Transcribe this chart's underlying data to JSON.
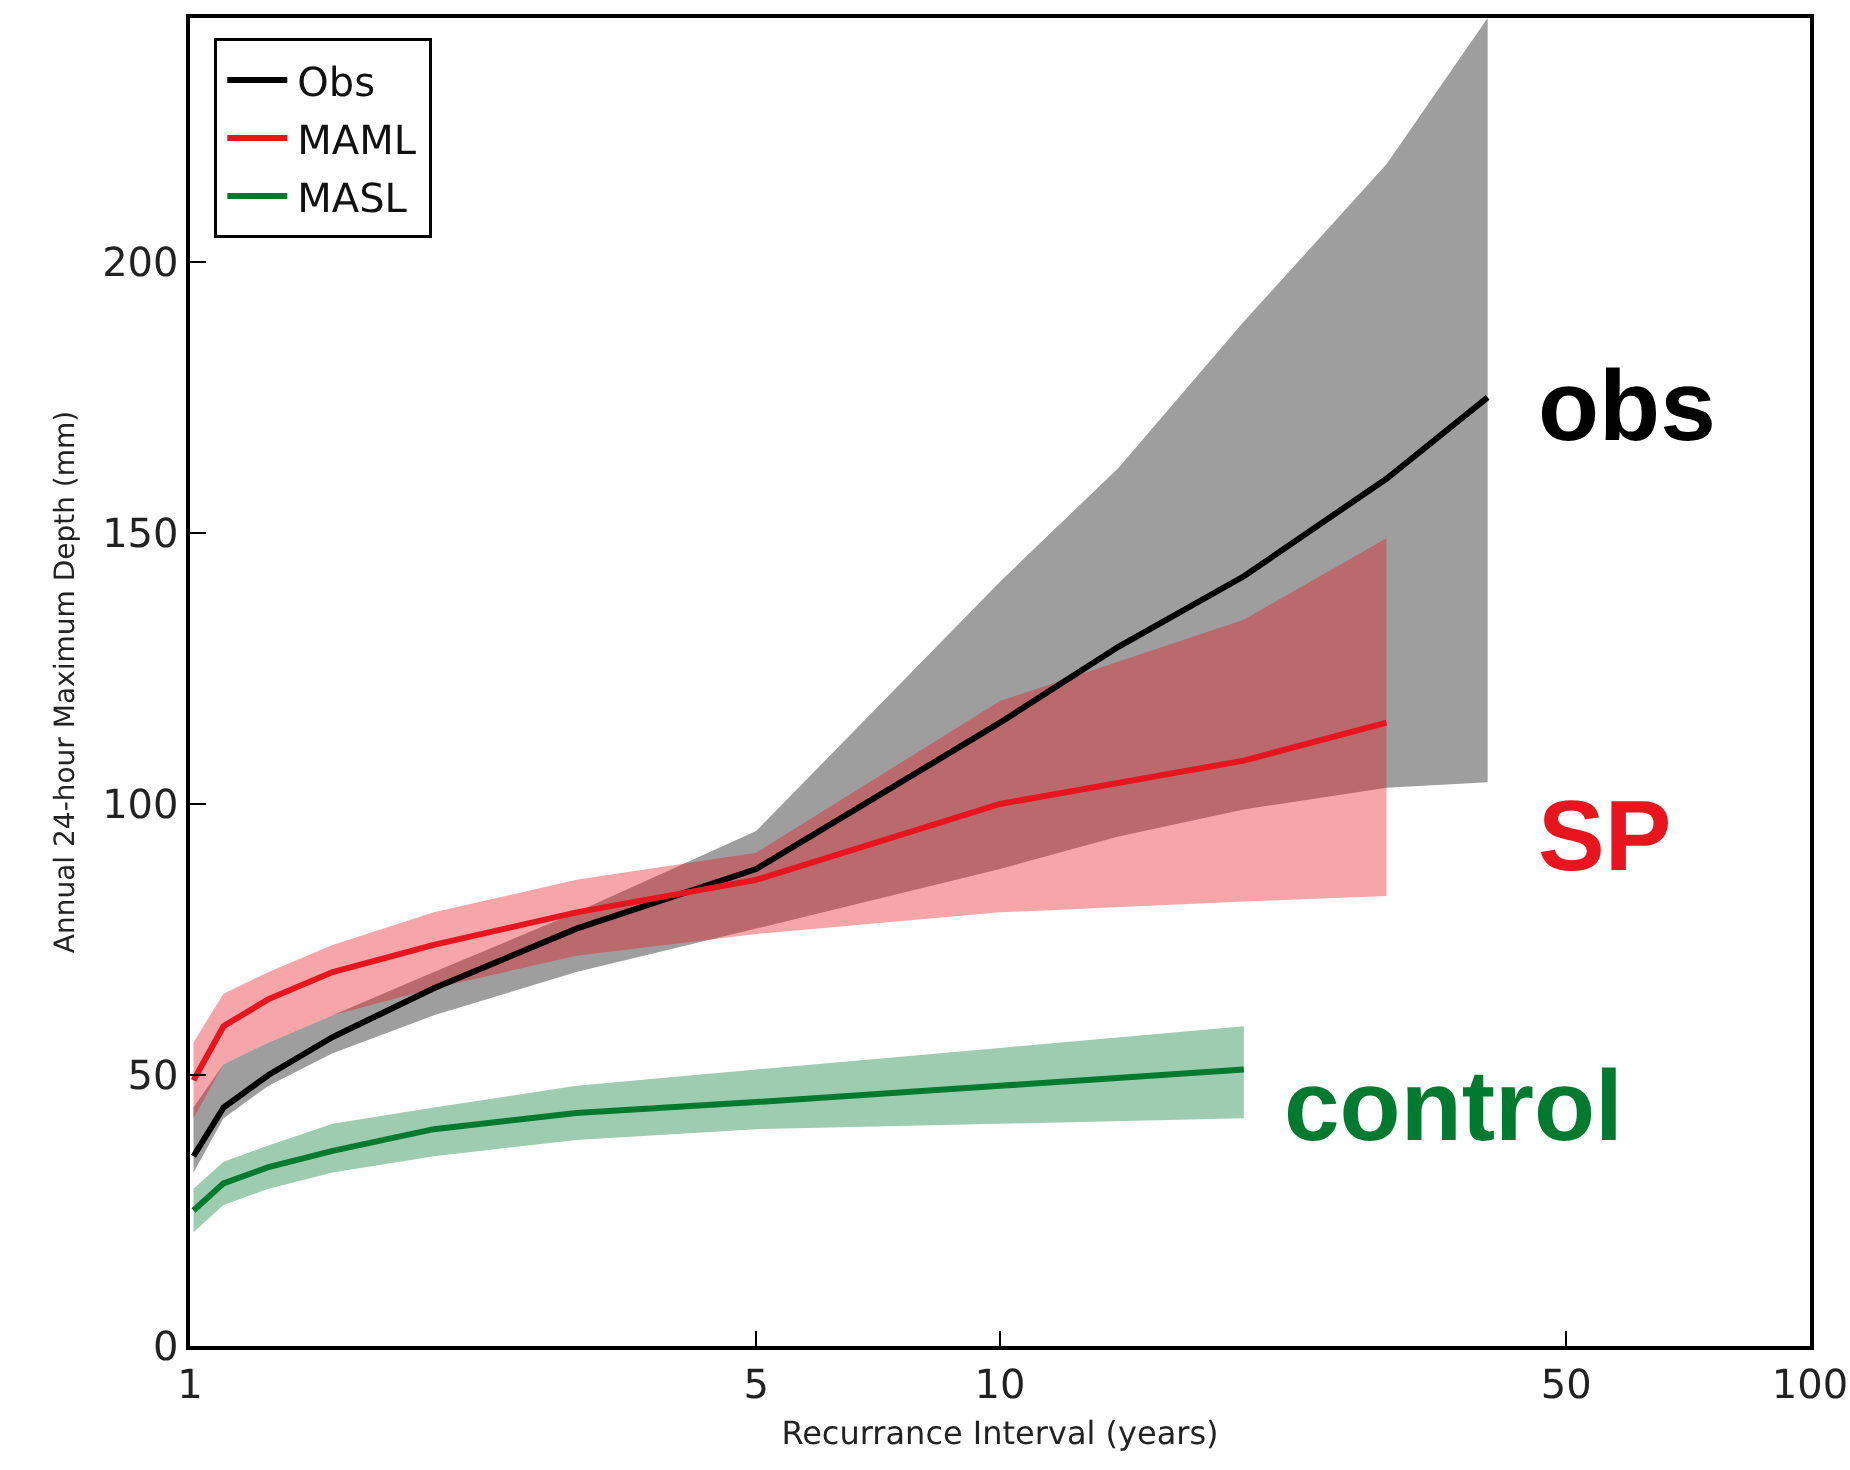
{
  "chart_data": {
    "type": "line",
    "xlabel": "Recurrance Interval (years)",
    "ylabel": "Annual 24-hour Maximum Depth (mm)",
    "log": "x",
    "xlim": [
      1,
      100
    ],
    "xticks": [
      1,
      5,
      10,
      50,
      100
    ],
    "ylim": [
      0,
      245
    ],
    "yticks": [
      0,
      50,
      100,
      150,
      200
    ],
    "grid": false,
    "legend": "top left",
    "series": [
      {
        "name": "Obs",
        "color": "#000000",
        "x": [
          1.01,
          1.1,
          1.25,
          1.5,
          2,
          3,
          5,
          10,
          14,
          20,
          30,
          40
        ],
        "values": [
          35,
          44,
          50,
          57,
          66,
          77,
          88,
          115,
          129,
          142,
          160,
          175
        ],
        "lower": [
          32,
          42,
          48,
          54,
          61,
          69,
          77,
          88,
          94,
          99,
          103,
          104
        ],
        "upper": [
          44,
          52,
          56,
          61,
          69,
          80,
          95,
          141,
          162,
          189,
          218,
          245
        ]
      },
      {
        "name": "MAML",
        "color": "#e8141e",
        "x": [
          1.01,
          1.1,
          1.25,
          1.5,
          2,
          3,
          5,
          10,
          20,
          30
        ],
        "values": [
          49,
          59,
          64,
          69,
          74,
          80,
          86,
          100,
          108,
          115
        ],
        "lower": [
          42,
          52,
          56,
          61,
          66,
          72,
          76,
          80,
          82,
          83
        ],
        "upper": [
          56,
          65,
          69,
          74,
          80,
          86,
          91,
          119,
          134,
          149
        ]
      },
      {
        "name": "MASL",
        "color": "#007a2f",
        "x": [
          1.01,
          1.1,
          1.25,
          1.5,
          2,
          3,
          5,
          10,
          20
        ],
        "values": [
          25,
          30,
          33,
          36,
          40,
          43,
          45,
          48,
          51
        ],
        "lower": [
          21,
          26,
          29,
          32,
          35,
          38,
          40,
          41,
          42
        ],
        "upper": [
          29,
          34,
          37,
          41,
          44,
          48,
          51,
          55,
          59
        ]
      }
    ],
    "annotations": [
      "obs",
      "SP",
      "control"
    ]
  }
}
